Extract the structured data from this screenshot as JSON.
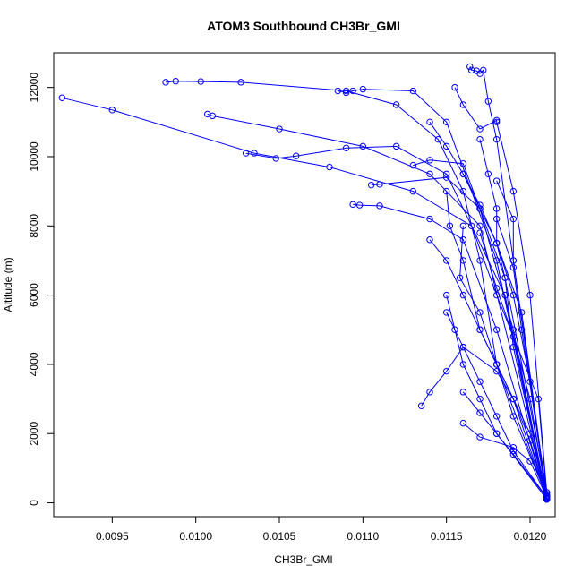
{
  "chart_data": {
    "type": "line",
    "title": "ATOM3 Southbound CH3Br_GMI",
    "xlabel": "CH3Br_GMI",
    "ylabel": "Altitude (m)",
    "xlim": [
      0.00915,
      0.01215
    ],
    "ylim": [
      -400,
      13000
    ],
    "xticks": [
      0.0095,
      0.01,
      0.0105,
      0.011,
      0.0115,
      0.012
    ],
    "xtick_labels": [
      "0.0095",
      "0.0100",
      "0.0105",
      "0.0110",
      "0.0115",
      "0.0120"
    ],
    "yticks": [
      0,
      2000,
      4000,
      6000,
      8000,
      10000,
      12000
    ],
    "ytick_labels": [
      "0",
      "2000",
      "4000",
      "6000",
      "8000",
      "10000",
      "12000"
    ],
    "color": "#0000ff",
    "marker": "open-circle",
    "grid": false,
    "legend": "none",
    "series": [
      {
        "x": [
          0.0092,
          0.0095,
          0.01035,
          0.0108,
          0.0113,
          0.01165,
          0.0118,
          0.01205,
          0.0121
        ],
        "y": [
          11700,
          11350,
          10100,
          9700,
          9000,
          8000,
          6000,
          3000,
          200
        ]
      },
      {
        "x": [
          0.00982,
          0.00988,
          0.01003,
          0.01027,
          0.0109,
          0.0112,
          0.01145,
          0.0116,
          0.0117,
          0.0118,
          0.0121
        ],
        "y": [
          12150,
          12180,
          12170,
          12150,
          11900,
          11500,
          10500,
          9000,
          7000,
          4000,
          150
        ]
      },
      {
        "x": [
          0.01085,
          0.0109,
          0.01094,
          0.011,
          0.0113,
          0.0115,
          0.0118,
          0.0121
        ],
        "y": [
          11900,
          11850,
          11900,
          11950,
          11900,
          11000,
          7000,
          100
        ]
      },
      {
        "x": [
          0.01007,
          0.0101,
          0.0105,
          0.011,
          0.0114,
          0.0117,
          0.0121
        ],
        "y": [
          11230,
          11180,
          10800,
          10300,
          9500,
          8000,
          180
        ]
      },
      {
        "x": [
          0.0103,
          0.01048,
          0.0106,
          0.0109,
          0.0112,
          0.0115,
          0.01185,
          0.0121
        ],
        "y": [
          10100,
          9950,
          10020,
          10250,
          10300,
          9500,
          6000,
          120
        ]
      },
      {
        "x": [
          0.01094,
          0.01098,
          0.0111,
          0.0114,
          0.0116,
          0.0118,
          0.0121
        ],
        "y": [
          8620,
          8600,
          8580,
          8200,
          7600,
          5000,
          100
        ]
      },
      {
        "x": [
          0.01105,
          0.0111,
          0.0115,
          0.0117,
          0.0119,
          0.01207
        ],
        "y": [
          9180,
          9200,
          9400,
          8500,
          5000,
          800
        ]
      },
      {
        "x": [
          0.0113,
          0.0114,
          0.0116,
          0.01185,
          0.0121
        ],
        "y": [
          9750,
          9900,
          9800,
          6500,
          300
        ]
      },
      {
        "x": [
          0.01164,
          0.01165,
          0.01168,
          0.0117,
          0.01172,
          0.01175,
          0.0118,
          0.0119,
          0.0121
        ],
        "y": [
          12600,
          12500,
          12480,
          12400,
          12500,
          11600,
          10500,
          7000,
          100
        ]
      },
      {
        "x": [
          0.01155,
          0.0116,
          0.0117,
          0.0118,
          0.0118,
          0.0119,
          0.012,
          0.0121
        ],
        "y": [
          12000,
          11500,
          10800,
          11050,
          11000,
          9000,
          6000,
          300
        ]
      },
      {
        "x": [
          0.0114,
          0.0115,
          0.0116,
          0.0117,
          0.0118,
          0.0119,
          0.012,
          0.0121
        ],
        "y": [
          11000,
          10300,
          9500,
          8600,
          7500,
          6000,
          3500,
          250
        ]
      },
      {
        "x": [
          0.01135,
          0.0114,
          0.0115,
          0.0116,
          0.0117,
          0.0118,
          0.0119,
          0.0121
        ],
        "y": [
          2800,
          3200,
          3800,
          4500,
          3500,
          2500,
          1500,
          150
        ]
      },
      {
        "x": [
          0.0114,
          0.0115,
          0.0116,
          0.0117,
          0.0118,
          0.0119,
          0.0121
        ],
        "y": [
          7600,
          7000,
          6000,
          5000,
          4000,
          2500,
          200
        ]
      },
      {
        "x": [
          0.0115,
          0.01155,
          0.0116,
          0.0117,
          0.0118,
          0.0121
        ],
        "y": [
          6000,
          5000,
          4000,
          3000,
          2000,
          100
        ]
      },
      {
        "x": [
          0.0115,
          0.01152,
          0.0116,
          0.0117,
          0.0119,
          0.0121
        ],
        "y": [
          9000,
          8000,
          7000,
          5000,
          3000,
          120
        ]
      },
      {
        "x": [
          0.0116,
          0.0117,
          0.0118,
          0.01185,
          0.0119,
          0.0121
        ],
        "y": [
          9500,
          8500,
          7500,
          6500,
          4500,
          150
        ]
      },
      {
        "x": [
          0.0117,
          0.01175,
          0.0118,
          0.0118,
          0.01195,
          0.0121
        ],
        "y": [
          10500,
          9500,
          8500,
          7500,
          5500,
          130
        ]
      },
      {
        "x": [
          0.0116,
          0.01158,
          0.0117,
          0.0118,
          0.012,
          0.0121
        ],
        "y": [
          8000,
          6500,
          5500,
          4000,
          2000,
          200
        ]
      },
      {
        "x": [
          0.0115,
          0.0116,
          0.0118,
          0.0119,
          0.012,
          0.0121
        ],
        "y": [
          5500,
          4500,
          3800,
          3000,
          1800,
          200
        ]
      },
      {
        "x": [
          0.0116,
          0.0117,
          0.0119,
          0.012,
          0.0121
        ],
        "y": [
          2300,
          1900,
          1600,
          1200,
          150
        ]
      },
      {
        "x": [
          0.0118,
          0.0119,
          0.01195,
          0.0121
        ],
        "y": [
          8200,
          6800,
          5000,
          200
        ]
      },
      {
        "x": [
          0.0117,
          0.0118,
          0.0119,
          0.012,
          0.0121
        ],
        "y": [
          7800,
          6200,
          4800,
          3000,
          150
        ]
      },
      {
        "x": [
          0.0116,
          0.0117,
          0.0118,
          0.0119,
          0.0121
        ],
        "y": [
          3200,
          2600,
          2000,
          1400,
          150
        ]
      },
      {
        "x": [
          0.0118,
          0.0119,
          0.0119,
          0.0121
        ],
        "y": [
          9300,
          8200,
          7000,
          200
        ]
      }
    ]
  }
}
